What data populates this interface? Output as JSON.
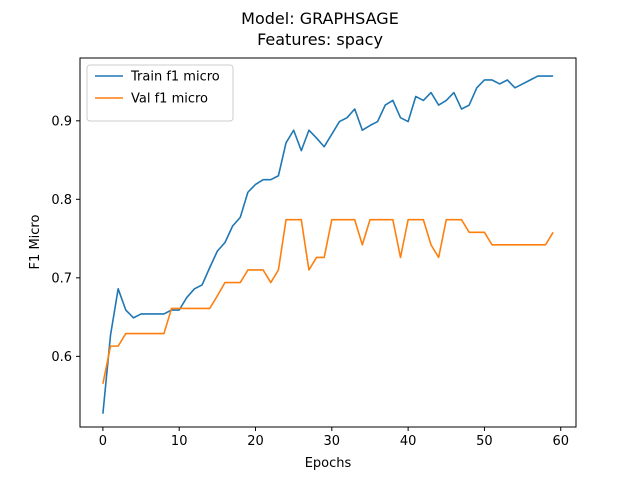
{
  "chart_data": {
    "type": "line",
    "title": "Model: GRAPHSAGE",
    "subtitle": "Features: spacy",
    "xlabel": "Epochs",
    "ylabel": "F1 Micro",
    "xlim": [
      -3,
      62
    ],
    "ylim": [
      0.51,
      0.98
    ],
    "xticks": [
      0,
      10,
      20,
      30,
      40,
      50,
      60
    ],
    "yticks": [
      0.6,
      0.7,
      0.8,
      0.9
    ],
    "grid": false,
    "legend_position": "top-left",
    "series": [
      {
        "name": "Train f1 micro",
        "color": "#1f77b4",
        "x": [
          0,
          1,
          2,
          3,
          4,
          5,
          6,
          7,
          8,
          9,
          10,
          11,
          12,
          13,
          14,
          15,
          16,
          17,
          18,
          19,
          20,
          21,
          22,
          23,
          24,
          25,
          26,
          27,
          28,
          29,
          30,
          31,
          32,
          33,
          34,
          35,
          36,
          37,
          38,
          39,
          40,
          41,
          42,
          43,
          44,
          45,
          46,
          47,
          48,
          49,
          50,
          51,
          52,
          53,
          54,
          55,
          56,
          57,
          58,
          59
        ],
        "values": [
          0.527,
          0.627,
          0.686,
          0.659,
          0.649,
          0.654,
          0.654,
          0.654,
          0.654,
          0.659,
          0.659,
          0.675,
          0.686,
          0.691,
          0.713,
          0.734,
          0.745,
          0.766,
          0.777,
          0.809,
          0.819,
          0.825,
          0.825,
          0.83,
          0.872,
          0.888,
          0.862,
          0.888,
          0.878,
          0.867,
          0.883,
          0.899,
          0.904,
          0.915,
          0.888,
          0.894,
          0.899,
          0.92,
          0.926,
          0.904,
          0.899,
          0.931,
          0.926,
          0.936,
          0.92,
          0.926,
          0.936,
          0.915,
          0.92,
          0.942,
          0.952,
          0.952,
          0.947,
          0.952,
          0.942,
          0.947,
          0.952,
          0.957,
          0.957,
          0.957
        ]
      },
      {
        "name": "Val f1 micro",
        "color": "#ff7f0e",
        "x": [
          0,
          1,
          2,
          3,
          4,
          5,
          6,
          7,
          8,
          9,
          10,
          11,
          12,
          13,
          14,
          15,
          16,
          17,
          18,
          19,
          20,
          21,
          22,
          23,
          24,
          25,
          26,
          27,
          28,
          29,
          30,
          31,
          32,
          33,
          34,
          35,
          36,
          37,
          38,
          39,
          40,
          41,
          42,
          43,
          44,
          45,
          46,
          47,
          48,
          49,
          50,
          51,
          52,
          53,
          54,
          55,
          56,
          57,
          58,
          59
        ],
        "values": [
          0.565,
          0.613,
          0.613,
          0.629,
          0.629,
          0.629,
          0.629,
          0.629,
          0.629,
          0.661,
          0.661,
          0.661,
          0.661,
          0.661,
          0.661,
          0.677,
          0.694,
          0.694,
          0.694,
          0.71,
          0.71,
          0.71,
          0.694,
          0.71,
          0.774,
          0.774,
          0.774,
          0.71,
          0.726,
          0.726,
          0.774,
          0.774,
          0.774,
          0.774,
          0.742,
          0.774,
          0.774,
          0.774,
          0.774,
          0.726,
          0.774,
          0.774,
          0.774,
          0.742,
          0.726,
          0.774,
          0.774,
          0.774,
          0.758,
          0.758,
          0.758,
          0.742,
          0.742,
          0.742,
          0.742,
          0.742,
          0.742,
          0.742,
          0.742,
          0.758
        ]
      }
    ]
  }
}
